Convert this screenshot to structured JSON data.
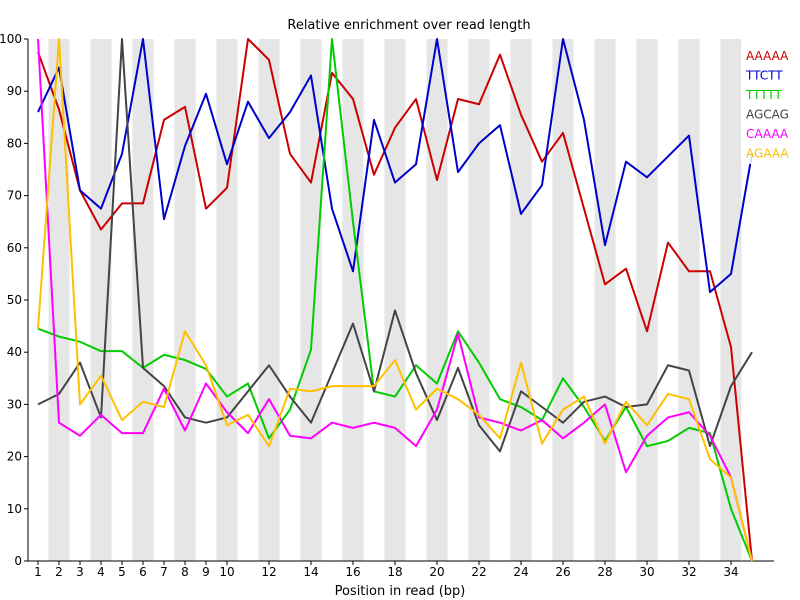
{
  "chart_data": {
    "type": "line",
    "title": "Relative enrichment over read length",
    "xlabel": "Position in read (bp)",
    "ylabel": "",
    "ylim": [
      0,
      100
    ],
    "yticks": [
      0,
      10,
      20,
      30,
      40,
      50,
      60,
      70,
      80,
      90,
      100
    ],
    "x": [
      1,
      2,
      3,
      4,
      5,
      6,
      7,
      8,
      9,
      10,
      11,
      12,
      13,
      14,
      15,
      16,
      17,
      18,
      19,
      20,
      21,
      22,
      23,
      24,
      25,
      26,
      27,
      28,
      29,
      30,
      31,
      32,
      33,
      34,
      35
    ],
    "xticks": [
      1,
      2,
      3,
      4,
      5,
      6,
      7,
      8,
      9,
      10,
      12,
      14,
      16,
      18,
      20,
      22,
      24,
      26,
      28,
      30,
      32,
      34
    ],
    "grid": "alternating vertical bands",
    "legend_position": "top-right",
    "series": [
      {
        "name": "AAAAA",
        "color": "#cc0000",
        "values": [
          97.5,
          86.5,
          71,
          63.5,
          68.5,
          68.5,
          84.5,
          87,
          67.5,
          71.5,
          100,
          96,
          78,
          72.5,
          93.5,
          88.5,
          74,
          83,
          88.5,
          73,
          88.5,
          87.5,
          97,
          85.5,
          76.5,
          82,
          67.5,
          53,
          56,
          44,
          61,
          55.5,
          55.5,
          41,
          0
        ]
      },
      {
        "name": "TTCTT",
        "color": "#0000cc",
        "values": [
          86,
          94.5,
          71,
          67.5,
          78,
          100,
          65.5,
          79.5,
          89.5,
          76,
          88,
          81,
          86,
          93,
          67.5,
          55.5,
          84.5,
          72.5,
          76,
          100,
          74.5,
          80,
          83.5,
          66.5,
          72,
          100,
          84.5,
          60.5,
          76.5,
          73.5,
          77.5,
          81.5,
          51.5,
          55,
          78
        ]
      },
      {
        "name": "TTTTT",
        "color": "#00cc00",
        "values": [
          44.5,
          43,
          42,
          40.2,
          40.2,
          37,
          39.5,
          38.5,
          36.8,
          31.5,
          34,
          23.5,
          29,
          40.5,
          100,
          65,
          32.5,
          31.5,
          37.5,
          34,
          44,
          38,
          31,
          29.5,
          27,
          35,
          29.5,
          23,
          29.5,
          22,
          23,
          25.5,
          24.5,
          10,
          0
        ]
      },
      {
        "name": "AGCAG",
        "color": "#444444",
        "values": [
          30,
          32,
          38,
          27.5,
          100,
          37,
          33.5,
          27.5,
          26.5,
          27.5,
          32.5,
          37.5,
          31.5,
          26.5,
          36,
          45.5,
          32.5,
          48,
          36,
          27,
          37,
          26,
          21,
          32.5,
          29.5,
          26.5,
          30.5,
          31.5,
          29.5,
          30,
          37.5,
          36.5,
          22,
          33.5,
          40
        ]
      },
      {
        "name": "CAAAA",
        "color": "#ff00ff",
        "values": [
          100,
          26.5,
          24,
          28,
          24.5,
          24.5,
          33,
          25,
          34,
          28.5,
          24.5,
          31,
          24,
          23.5,
          26.5,
          25.5,
          26.5,
          25.5,
          22,
          29,
          43.5,
          27.5,
          26.5,
          25,
          27,
          23.5,
          26.5,
          30,
          17,
          24,
          27.5,
          28.5,
          24,
          16,
          0
        ]
      },
      {
        "name": "AGAAA",
        "color": "#ffc000",
        "values": [
          44.5,
          100,
          30,
          35.5,
          27,
          30.5,
          29.5,
          44,
          37.5,
          26,
          28,
          22,
          33,
          32.5,
          33.5,
          33.5,
          33.5,
          38.5,
          29,
          33,
          31,
          28,
          23.5,
          38,
          22.5,
          29,
          31.5,
          22.5,
          30.5,
          26,
          32,
          31,
          19.5,
          16,
          0
        ]
      }
    ]
  }
}
